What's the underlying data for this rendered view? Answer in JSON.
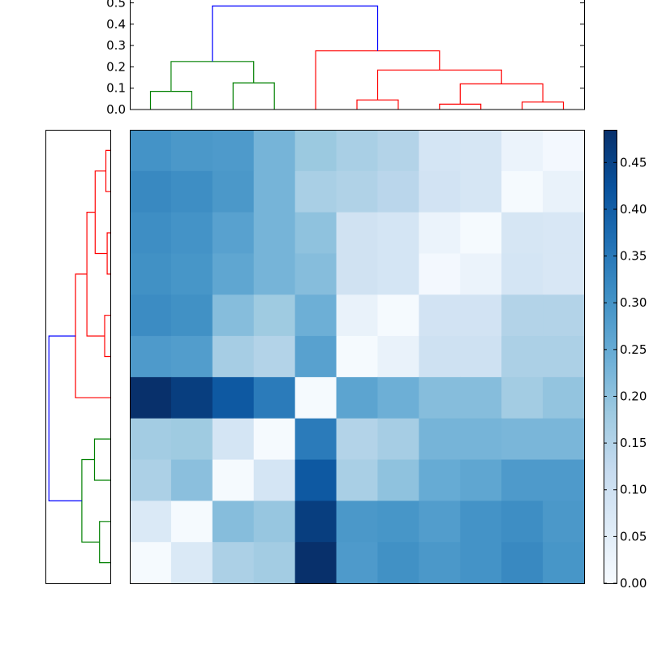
{
  "chart_data": {
    "type": "heatmap",
    "title": "",
    "matrix_ticks": "none",
    "matrix": [
      [
        0.3,
        0.29,
        0.285,
        0.23,
        0.185,
        0.165,
        0.15,
        0.085,
        0.08,
        0.03,
        0.01
      ],
      [
        0.32,
        0.31,
        0.29,
        0.23,
        0.165,
        0.155,
        0.14,
        0.09,
        0.08,
        0.005,
        0.035
      ],
      [
        0.31,
        0.3,
        0.27,
        0.23,
        0.2,
        0.095,
        0.085,
        0.03,
        0.005,
        0.08,
        0.075
      ],
      [
        0.305,
        0.295,
        0.26,
        0.23,
        0.21,
        0.095,
        0.085,
        0.01,
        0.03,
        0.085,
        0.075
      ],
      [
        0.315,
        0.305,
        0.21,
        0.18,
        0.24,
        0.035,
        0.005,
        0.09,
        0.09,
        0.15,
        0.15
      ],
      [
        0.285,
        0.28,
        0.17,
        0.15,
        0.27,
        0.005,
        0.035,
        0.1,
        0.1,
        0.16,
        0.16
      ],
      [
        0.485,
        0.46,
        0.41,
        0.345,
        0.005,
        0.265,
        0.24,
        0.21,
        0.21,
        0.175,
        0.195
      ],
      [
        0.175,
        0.18,
        0.085,
        0.005,
        0.345,
        0.15,
        0.17,
        0.23,
        0.23,
        0.225,
        0.225
      ],
      [
        0.16,
        0.205,
        0.005,
        0.085,
        0.41,
        0.165,
        0.2,
        0.25,
        0.26,
        0.285,
        0.285
      ],
      [
        0.07,
        0.005,
        0.21,
        0.19,
        0.46,
        0.29,
        0.295,
        0.28,
        0.3,
        0.31,
        0.29
      ],
      [
        0.005,
        0.07,
        0.16,
        0.175,
        0.485,
        0.285,
        0.305,
        0.29,
        0.3,
        0.32,
        0.295
      ]
    ],
    "colorbar": {
      "colormap": "Blues",
      "range": [
        0,
        0.485
      ],
      "ticks": [
        "0.00",
        "0.05",
        "0.10",
        "0.15",
        "0.20",
        "0.25",
        "0.30",
        "0.35",
        "0.40",
        "0.45"
      ]
    },
    "top_dendrogram": {
      "ylim": [
        0,
        0.5
      ],
      "yticks": [
        "0.0",
        "0.1",
        "0.2",
        "0.3",
        "0.4",
        "0.5"
      ],
      "links": [
        {
          "xs": [
            0.5,
            0.5,
            1.5,
            1.5
          ],
          "ys": [
            0,
            0.085,
            0.085,
            0
          ],
          "color": "#008000"
        },
        {
          "xs": [
            2.5,
            2.5,
            3.5,
            3.5
          ],
          "ys": [
            0,
            0.125,
            0.125,
            0
          ],
          "color": "#008000"
        },
        {
          "xs": [
            1.0,
            1.0,
            3.0,
            3.0
          ],
          "ys": [
            0.085,
            0.225,
            0.225,
            0.125
          ],
          "color": "#008000"
        },
        {
          "xs": [
            5.5,
            5.5,
            6.5,
            6.5
          ],
          "ys": [
            0,
            0.045,
            0.045,
            0
          ],
          "color": "#ff0000"
        },
        {
          "xs": [
            7.5,
            7.5,
            8.5,
            8.5
          ],
          "ys": [
            0,
            0.025,
            0.025,
            0
          ],
          "color": "#ff0000"
        },
        {
          "xs": [
            9.5,
            9.5,
            10.5,
            10.5
          ],
          "ys": [
            0,
            0.035,
            0.035,
            0
          ],
          "color": "#ff0000"
        },
        {
          "xs": [
            8.0,
            8.0,
            10.0,
            10.0
          ],
          "ys": [
            0.025,
            0.12,
            0.12,
            0.035
          ],
          "color": "#ff0000"
        },
        {
          "xs": [
            6.0,
            6.0,
            9.0,
            9.0
          ],
          "ys": [
            0.045,
            0.185,
            0.185,
            0.12
          ],
          "color": "#ff0000"
        },
        {
          "xs": [
            4.5,
            4.5,
            7.5,
            7.5
          ],
          "ys": [
            0,
            0.275,
            0.275,
            0.185
          ],
          "color": "#ff0000"
        },
        {
          "xs": [
            2.0,
            2.0,
            6.0,
            6.0
          ],
          "ys": [
            0.225,
            0.485,
            0.485,
            0.275
          ],
          "color": "#0000ff"
        }
      ]
    },
    "left_dendrogram": {
      "orientation": "left",
      "links": [
        {
          "leaves": [
            0.5,
            0.5,
            1.5,
            1.5
          ],
          "heights": [
            0,
            0.085,
            0.085,
            0
          ],
          "color": "#008000"
        },
        {
          "leaves": [
            2.5,
            2.5,
            3.5,
            3.5
          ],
          "heights": [
            0,
            0.125,
            0.125,
            0
          ],
          "color": "#008000"
        },
        {
          "leaves": [
            1.0,
            1.0,
            3.0,
            3.0
          ],
          "heights": [
            0.085,
            0.225,
            0.225,
            0.125
          ],
          "color": "#008000"
        },
        {
          "leaves": [
            5.5,
            5.5,
            6.5,
            6.5
          ],
          "heights": [
            0,
            0.045,
            0.045,
            0
          ],
          "color": "#ff0000"
        },
        {
          "leaves": [
            7.5,
            7.5,
            8.5,
            8.5
          ],
          "heights": [
            0,
            0.025,
            0.025,
            0
          ],
          "color": "#ff0000"
        },
        {
          "leaves": [
            9.5,
            9.5,
            10.5,
            10.5
          ],
          "heights": [
            0,
            0.035,
            0.035,
            0
          ],
          "color": "#ff0000"
        },
        {
          "leaves": [
            8.0,
            8.0,
            10.0,
            10.0
          ],
          "heights": [
            0.025,
            0.12,
            0.12,
            0.035
          ],
          "color": "#ff0000"
        },
        {
          "leaves": [
            6.0,
            6.0,
            9.0,
            9.0
          ],
          "heights": [
            0.045,
            0.185,
            0.185,
            0.12
          ],
          "color": "#ff0000"
        },
        {
          "leaves": [
            4.5,
            4.5,
            7.5,
            7.5
          ],
          "heights": [
            0,
            0.275,
            0.275,
            0.185
          ],
          "color": "#ff0000"
        },
        {
          "leaves": [
            2.0,
            2.0,
            6.0,
            6.0
          ],
          "heights": [
            0.225,
            0.485,
            0.485,
            0.275
          ],
          "color": "#0000ff"
        }
      ],
      "height_max": 0.5,
      "ticks": "none"
    }
  }
}
